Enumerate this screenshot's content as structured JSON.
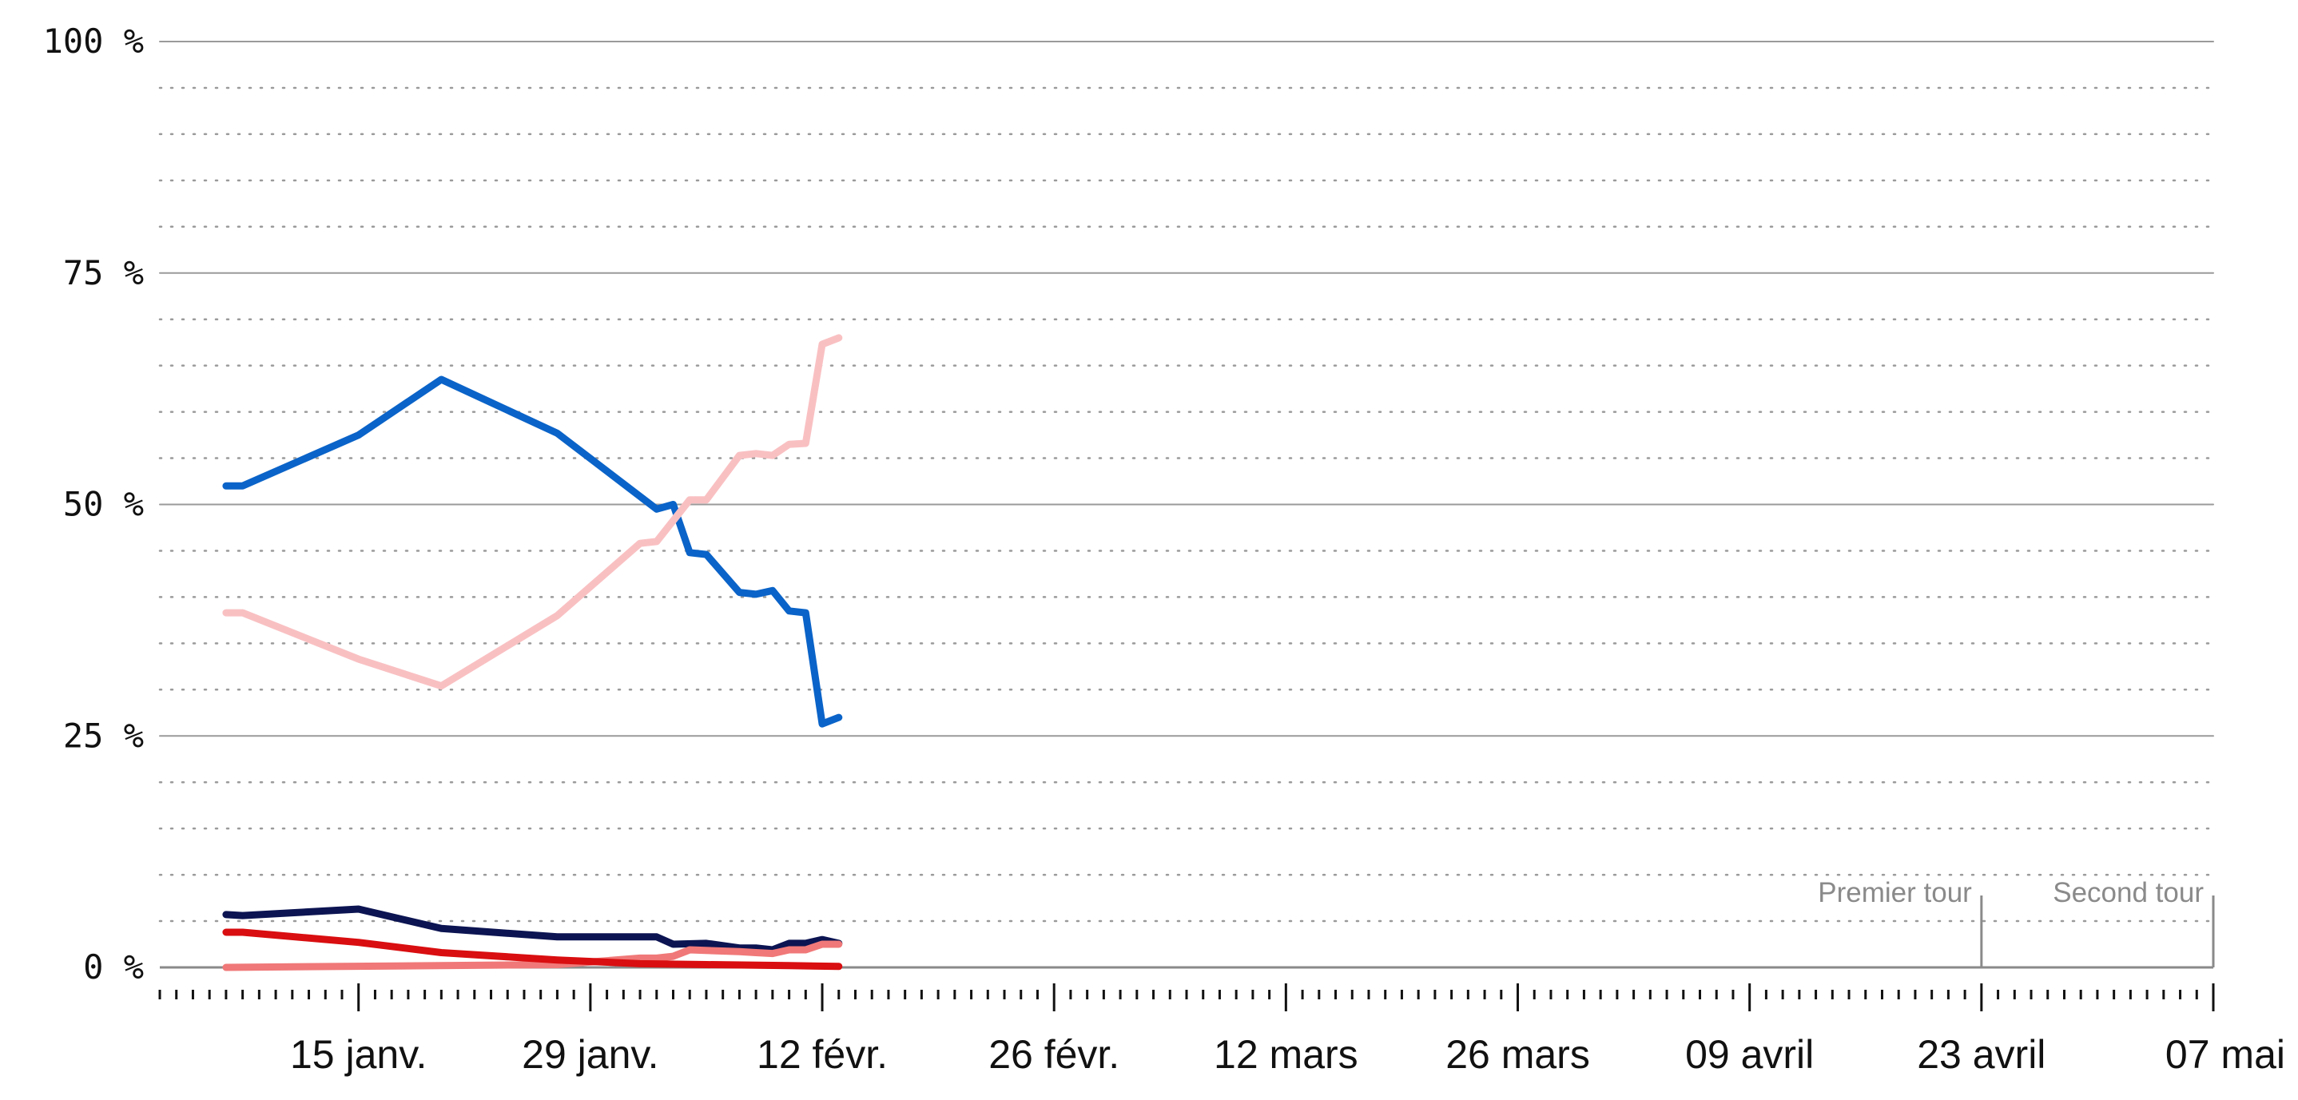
{
  "chart_data": {
    "type": "line",
    "x_type": "date",
    "xlim": [
      "2022-01-03",
      "2022-05-07"
    ],
    "ylim": [
      0,
      100
    ],
    "y_ticks": [
      {
        "value": 100,
        "label": "100 %"
      },
      {
        "value": 75,
        "label": "75 %"
      },
      {
        "value": 50,
        "label": "50 %"
      },
      {
        "value": 25,
        "label": "25 %"
      },
      {
        "value": 0,
        "label": "0 %"
      }
    ],
    "x_ticks": [
      {
        "date": "2022-01-15",
        "label": "15 janv."
      },
      {
        "date": "2022-01-29",
        "label": "29 janv."
      },
      {
        "date": "2022-02-12",
        "label": "12 févr."
      },
      {
        "date": "2022-02-26",
        "label": "26 févr."
      },
      {
        "date": "2022-03-12",
        "label": "12 mars"
      },
      {
        "date": "2022-03-26",
        "label": "26 mars"
      },
      {
        "date": "2022-04-09",
        "label": "09 avril"
      },
      {
        "date": "2022-04-23",
        "label": "23 avril"
      },
      {
        "date": "2022-05-07",
        "label": "07 mai"
      }
    ],
    "markers": [
      {
        "date": "2022-04-23",
        "label": "Premier tour"
      },
      {
        "date": "2022-05-07",
        "label": "Second tour"
      }
    ],
    "grid": {
      "major_step": 25,
      "minor_step": 5
    },
    "series": [
      {
        "color": "#0a63c8",
        "points": [
          [
            "2022-01-07",
            52
          ],
          [
            "2022-01-08",
            52
          ],
          [
            "2022-01-15",
            57.5
          ],
          [
            "2022-01-20",
            63.5
          ],
          [
            "2022-01-27",
            57.7
          ],
          [
            "2022-02-02",
            49.5
          ],
          [
            "2022-02-03",
            50
          ],
          [
            "2022-02-04",
            44.8
          ],
          [
            "2022-02-05",
            44.6
          ],
          [
            "2022-02-07",
            40.5
          ],
          [
            "2022-02-08",
            40.3
          ],
          [
            "2022-02-09",
            40.7
          ],
          [
            "2022-02-10",
            38.5
          ],
          [
            "2022-02-11",
            38.3
          ],
          [
            "2022-02-12",
            26.3
          ],
          [
            "2022-02-13",
            27
          ]
        ]
      },
      {
        "color": "#f9c0c2",
        "points": [
          [
            "2022-01-07",
            38.3
          ],
          [
            "2022-01-08",
            38.3
          ],
          [
            "2022-01-15",
            33.3
          ],
          [
            "2022-01-20",
            30.4
          ],
          [
            "2022-01-27",
            38
          ],
          [
            "2022-02-01",
            45.8
          ],
          [
            "2022-02-02",
            46
          ],
          [
            "2022-02-04",
            50.5
          ],
          [
            "2022-02-05",
            50.5
          ],
          [
            "2022-02-07",
            55.3
          ],
          [
            "2022-02-08",
            55.5
          ],
          [
            "2022-02-09",
            55.3
          ],
          [
            "2022-02-10",
            56.5
          ],
          [
            "2022-02-11",
            56.6
          ],
          [
            "2022-02-12",
            67.3
          ],
          [
            "2022-02-13",
            68
          ]
        ]
      },
      {
        "color": "#0c1452",
        "points": [
          [
            "2022-01-07",
            5.7
          ],
          [
            "2022-01-08",
            5.6
          ],
          [
            "2022-01-15",
            6.3
          ],
          [
            "2022-01-20",
            4.2
          ],
          [
            "2022-01-27",
            3.3
          ],
          [
            "2022-02-01",
            3.3
          ],
          [
            "2022-02-02",
            3.3
          ],
          [
            "2022-02-03",
            2.5
          ],
          [
            "2022-02-05",
            2.6
          ],
          [
            "2022-02-07",
            2.1
          ],
          [
            "2022-02-08",
            2.1
          ],
          [
            "2022-02-09",
            1.9
          ],
          [
            "2022-02-10",
            2.6
          ],
          [
            "2022-02-11",
            2.6
          ],
          [
            "2022-02-12",
            3
          ],
          [
            "2022-02-13",
            2.6
          ]
        ]
      },
      {
        "color": "#f07878",
        "points": [
          [
            "2022-01-07",
            0
          ],
          [
            "2022-01-27",
            0.3
          ],
          [
            "2022-02-01",
            1.0
          ],
          [
            "2022-02-02",
            1.0
          ],
          [
            "2022-02-03",
            1.2
          ],
          [
            "2022-02-04",
            1.9
          ],
          [
            "2022-02-07",
            1.7
          ],
          [
            "2022-02-08",
            1.6
          ],
          [
            "2022-02-09",
            1.5
          ],
          [
            "2022-02-10",
            1.9
          ],
          [
            "2022-02-11",
            1.9
          ],
          [
            "2022-02-12",
            2.5
          ],
          [
            "2022-02-13",
            2.5
          ]
        ]
      },
      {
        "color": "#d90e10",
        "points": [
          [
            "2022-01-07",
            3.8
          ],
          [
            "2022-01-08",
            3.8
          ],
          [
            "2022-01-15",
            2.7
          ],
          [
            "2022-01-20",
            1.6
          ],
          [
            "2022-01-27",
            0.8
          ],
          [
            "2022-02-01",
            0.4
          ],
          [
            "2022-02-05",
            0.3
          ],
          [
            "2022-02-10",
            0.2
          ],
          [
            "2022-02-13",
            0.1
          ]
        ]
      }
    ]
  }
}
